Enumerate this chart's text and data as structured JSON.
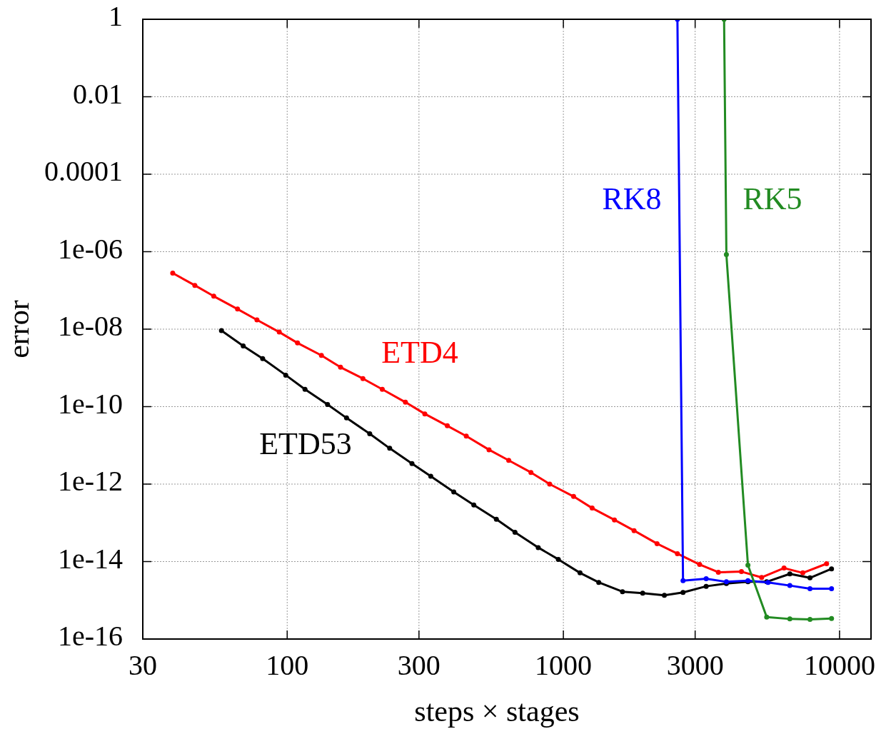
{
  "chart_data": {
    "type": "line",
    "xlabel": "steps × stages",
    "ylabel": "error",
    "log": "xy",
    "grid": true,
    "marker": "circle",
    "line_style": "solid",
    "xlim": [
      30,
      13000
    ],
    "ylim": [
      1e-16,
      1
    ],
    "xticks": [
      30,
      100,
      300,
      1000,
      3000,
      10000
    ],
    "yticks": [
      1,
      0.01,
      0.0001,
      {
        "value": 1e-06,
        "label": "1e-06"
      },
      {
        "value": 1e-08,
        "label": "1e-08"
      },
      {
        "value": 1e-10,
        "label": "1e-10"
      },
      {
        "value": 1e-12,
        "label": "1e-12"
      },
      {
        "value": 1e-14,
        "label": "1e-14"
      },
      {
        "value": 1e-16,
        "label": "1e-16"
      }
    ],
    "series": [
      {
        "name": "ETD4",
        "color": "#ff0000",
        "x": [
          38.5,
          46.3,
          54.2,
          66.1,
          77.7,
          93.6,
          109,
          133,
          156,
          188,
          221,
          268,
          315,
          380,
          445,
          538,
          634,
          763,
          892,
          1089,
          1271,
          1531,
          1803,
          2184,
          2588,
          3114,
          3641,
          4414,
          5224,
          6295,
          7362,
          8974
        ],
        "values": [
          2.8e-07,
          1.35e-07,
          7.1e-08,
          3.3e-08,
          1.74e-08,
          8.4e-09,
          4.4e-09,
          2.1e-09,
          1.04e-09,
          5.3e-10,
          2.8e-10,
          1.3e-10,
          6.5e-11,
          3.2e-11,
          1.74e-11,
          7.7e-12,
          4.1e-12,
          2e-12,
          1e-12,
          4.8e-13,
          2.4e-13,
          1.19e-13,
          6.3e-14,
          2.9e-14,
          1.6e-14,
          8.4e-15,
          5.3e-15,
          5.5e-15,
          3.9e-15,
          6.8e-15,
          5.1e-15,
          8.8e-15
        ]
      },
      {
        "name": "ETD53",
        "color": "#000000",
        "x": [
          57.8,
          69.3,
          81.5,
          98.8,
          116,
          140,
          164,
          199,
          235,
          283,
          331,
          401,
          474,
          572,
          668,
          811,
          959,
          1149,
          1343,
          1637,
          1937,
          2321,
          2712,
          3289,
          3893,
          4659,
          5448,
          6607,
          7817,
          9354
        ],
        "values": [
          9.2e-09,
          3.7e-09,
          1.74e-09,
          6.5e-10,
          2.8e-10,
          1.14e-10,
          5.1e-11,
          2e-11,
          8.4e-12,
          3.4e-12,
          1.6e-12,
          6.3e-13,
          2.9e-13,
          1.24e-13,
          5.7e-14,
          2.3e-14,
          1.14e-14,
          5.1e-15,
          2.9e-15,
          1.67e-15,
          1.53e-15,
          1.35e-15,
          1.6e-15,
          2.3e-15,
          2.7e-15,
          3e-15,
          3e-15,
          4.8e-15,
          3.8e-15,
          6.5e-15
        ]
      },
      {
        "name": "RK8",
        "color": "#0000ff",
        "x": [
          2588,
          2712,
          3289,
          3893,
          4659,
          5510,
          6607,
          7817,
          9354
        ],
        "values": [
          1,
          3.2e-15,
          3.6e-15,
          3e-15,
          3.2e-15,
          2.9e-15,
          2.4e-15,
          2e-15,
          2e-15
        ]
      },
      {
        "name": "RK5",
        "color": "#228b22",
        "x": [
          3819,
          3893,
          4659,
          5448,
          6607,
          7817,
          9354
        ],
        "values": [
          1,
          8.4e-07,
          8.1e-15,
          3.7e-16,
          3.3e-16,
          3.2e-16,
          3.4e-16
        ]
      }
    ]
  }
}
